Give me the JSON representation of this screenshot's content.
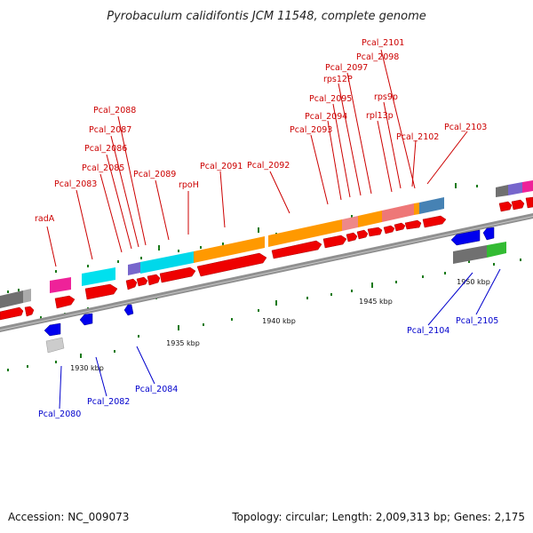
{
  "title": "Pyrobaculum calidifontis JCM 11548, complete genome",
  "footer": {
    "accession": "Accession: NC_009073",
    "topology": "Topology: circular; Length: 2,009,313 bp; Genes: 2,175"
  },
  "ticks": [
    "1930 kbp",
    "1935 kbp",
    "1940 kbp",
    "1945 kbp",
    "1950 kbp"
  ],
  "labels": {
    "radA": "radA",
    "pcal_2083": "Pcal_2083",
    "pcal_2085": "Pcal_2085",
    "pcal_2086": "Pcal_2086",
    "pcal_2087": "Pcal_2087",
    "pcal_2088": "Pcal_2088",
    "pcal_2089": "Pcal_2089",
    "rpoH": "rpoH",
    "pcal_2091": "Pcal_2091",
    "pcal_2092": "Pcal_2092",
    "pcal_2093": "Pcal_2093",
    "pcal_2094": "Pcal_2094",
    "pcal_2095": "Pcal_2095",
    "rps12P": "rps12P",
    "pcal_2097": "Pcal_2097",
    "pcal_2098": "Pcal_2098",
    "pcal_2101": "Pcal_2101",
    "rps9p": "rps9p",
    "rpl13p": "rpl13p",
    "pcal_2102": "Pcal_2102",
    "pcal_2103": "Pcal_2103",
    "pcal_2080": "Pcal_2080",
    "pcal_2082": "Pcal_2082",
    "pcal_2084": "Pcal_2084",
    "pcal_2104": "Pcal_2104",
    "pcal_2105": "Pcal_2105"
  },
  "colors": {
    "forward_gene": "#ee0000",
    "reverse_gene": "#0000ee",
    "backbone": "#888888",
    "tick": "#1a7a1a",
    "cyan_class": "#00e0ee",
    "orange_class": "#ff9900",
    "magenta_class": "#ee2299",
    "steelblue_class": "#4682b4",
    "gray_class": "#707070",
    "green_class": "#33bb33",
    "purple_class": "#7766cc",
    "pink_class": "#ee8888"
  }
}
